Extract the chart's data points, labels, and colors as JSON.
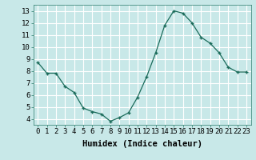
{
  "x": [
    0,
    1,
    2,
    3,
    4,
    5,
    6,
    7,
    8,
    9,
    10,
    11,
    12,
    13,
    14,
    15,
    16,
    17,
    18,
    19,
    20,
    21,
    22,
    23
  ],
  "y": [
    8.7,
    7.8,
    7.8,
    6.7,
    6.2,
    4.9,
    4.6,
    4.4,
    3.8,
    4.1,
    4.5,
    5.8,
    7.5,
    9.5,
    11.8,
    13.0,
    12.8,
    12.0,
    10.8,
    10.3,
    9.5,
    8.3,
    7.9,
    7.9
  ],
  "line_color": "#1a6b5a",
  "marker_color": "#1a6b5a",
  "bg_color": "#c8e8e8",
  "grid_color": "#ffffff",
  "xlabel": "Humidex (Indice chaleur)",
  "xlim": [
    -0.5,
    23.5
  ],
  "ylim": [
    3.5,
    13.5
  ],
  "yticks": [
    4,
    5,
    6,
    7,
    8,
    9,
    10,
    11,
    12,
    13
  ],
  "xticks": [
    0,
    1,
    2,
    3,
    4,
    5,
    6,
    7,
    8,
    9,
    10,
    11,
    12,
    13,
    14,
    15,
    16,
    17,
    18,
    19,
    20,
    21,
    22,
    23
  ],
  "tick_label_fontsize": 6.5,
  "xlabel_fontsize": 7.5
}
